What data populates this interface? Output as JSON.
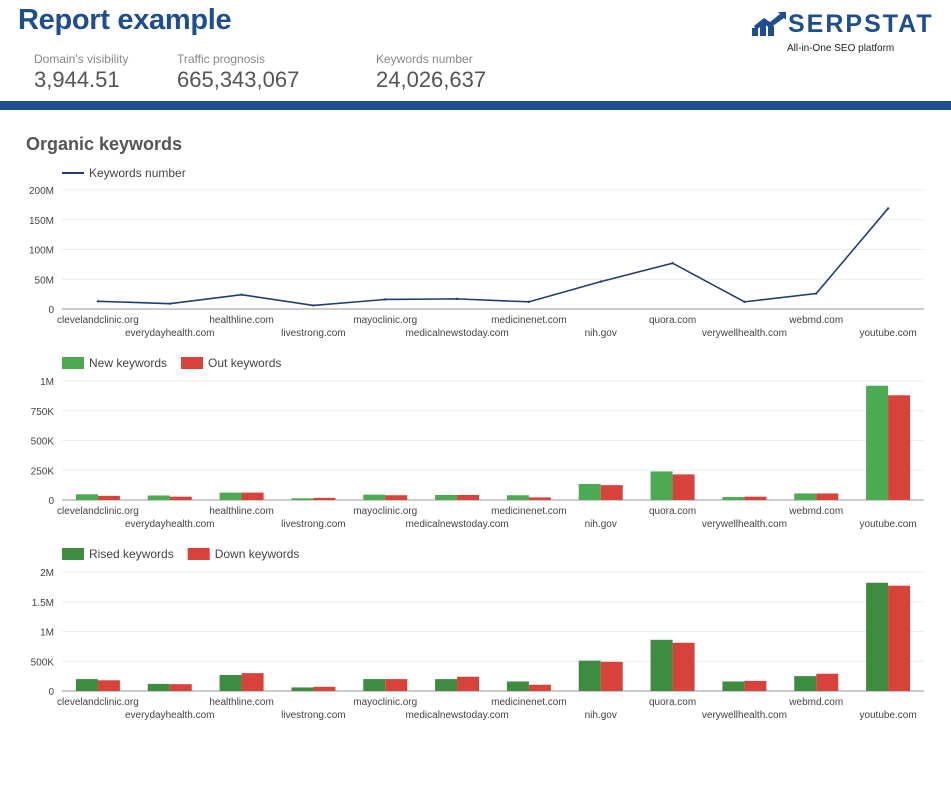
{
  "header": {
    "title": "Report example",
    "metrics": [
      {
        "label": "Domain's visibility",
        "value": "3,944.51"
      },
      {
        "label": "Traffic prognosis",
        "value": "665,343,067"
      },
      {
        "label": "Keywords number",
        "value": "24,026,637"
      }
    ],
    "logo": {
      "brand": "SERPSTAT",
      "tagline": "All-in-One SEO platform",
      "icon": "serpstat-chart-arrow-icon"
    },
    "bar_color": "#1f4e8c"
  },
  "section": {
    "title": "Organic keywords"
  },
  "chart_data": [
    {
      "type": "line",
      "categories": [
        "clevelandclinic.org",
        "everydayhealth.com",
        "healthline.com",
        "livestrong.com",
        "mayoclinic.org",
        "medicalnewstoday.com",
        "medicinenet.com",
        "nih.gov",
        "quora.com",
        "verywellhealth.com",
        "webmd.com",
        "youtube.com"
      ],
      "series": [
        {
          "name": "Keywords number",
          "color": "#1f3f73",
          "values": [
            13000000,
            9000000,
            24000000,
            6000000,
            16000000,
            17000000,
            12000000,
            46000000,
            77000000,
            12000000,
            26000000,
            169000000
          ]
        }
      ],
      "yticks": [
        "0",
        "50M",
        "100M",
        "150M",
        "200M"
      ],
      "ylim": [
        0,
        200000000
      ],
      "grid": true,
      "legend": "top-left"
    },
    {
      "type": "bar",
      "categories": [
        "clevelandclinic.org",
        "everydayhealth.com",
        "healthline.com",
        "livestrong.com",
        "mayoclinic.org",
        "medicalnewstoday.com",
        "medicinenet.com",
        "nih.gov",
        "quora.com",
        "verywellhealth.com",
        "webmd.com",
        "youtube.com"
      ],
      "series": [
        {
          "name": "New keywords",
          "color": "#4caa52",
          "values": [
            48000,
            38000,
            62000,
            14000,
            45000,
            42000,
            40000,
            135000,
            240000,
            25000,
            55000,
            960000
          ]
        },
        {
          "name": "Out keywords",
          "color": "#d7423a",
          "values": [
            35000,
            28000,
            62000,
            18000,
            40000,
            42000,
            22000,
            125000,
            215000,
            28000,
            55000,
            880000
          ]
        }
      ],
      "yticks": [
        "0",
        "250K",
        "500K",
        "750K",
        "1M"
      ],
      "ylim": [
        0,
        1000000
      ],
      "grid": true,
      "legend": "top-left"
    },
    {
      "type": "bar",
      "categories": [
        "clevelandclinic.org",
        "everydayhealth.com",
        "healthline.com",
        "livestrong.com",
        "mayoclinic.org",
        "medicalnewstoday.com",
        "medicinenet.com",
        "nih.gov",
        "quora.com",
        "verywellhealth.com",
        "webmd.com",
        "youtube.com"
      ],
      "series": [
        {
          "name": "Rised keywords",
          "color": "#3d8c40",
          "values": [
            200000,
            120000,
            270000,
            60000,
            200000,
            200000,
            160000,
            510000,
            860000,
            160000,
            250000,
            1820000
          ]
        },
        {
          "name": "Down keywords",
          "color": "#d7423a",
          "values": [
            180000,
            115000,
            300000,
            70000,
            200000,
            240000,
            105000,
            490000,
            810000,
            170000,
            290000,
            1770000
          ]
        }
      ],
      "yticks": [
        "0",
        "500K",
        "1M",
        "1.5M",
        "2M"
      ],
      "ylim": [
        0,
        2000000
      ],
      "grid": true,
      "legend": "top-left"
    }
  ]
}
